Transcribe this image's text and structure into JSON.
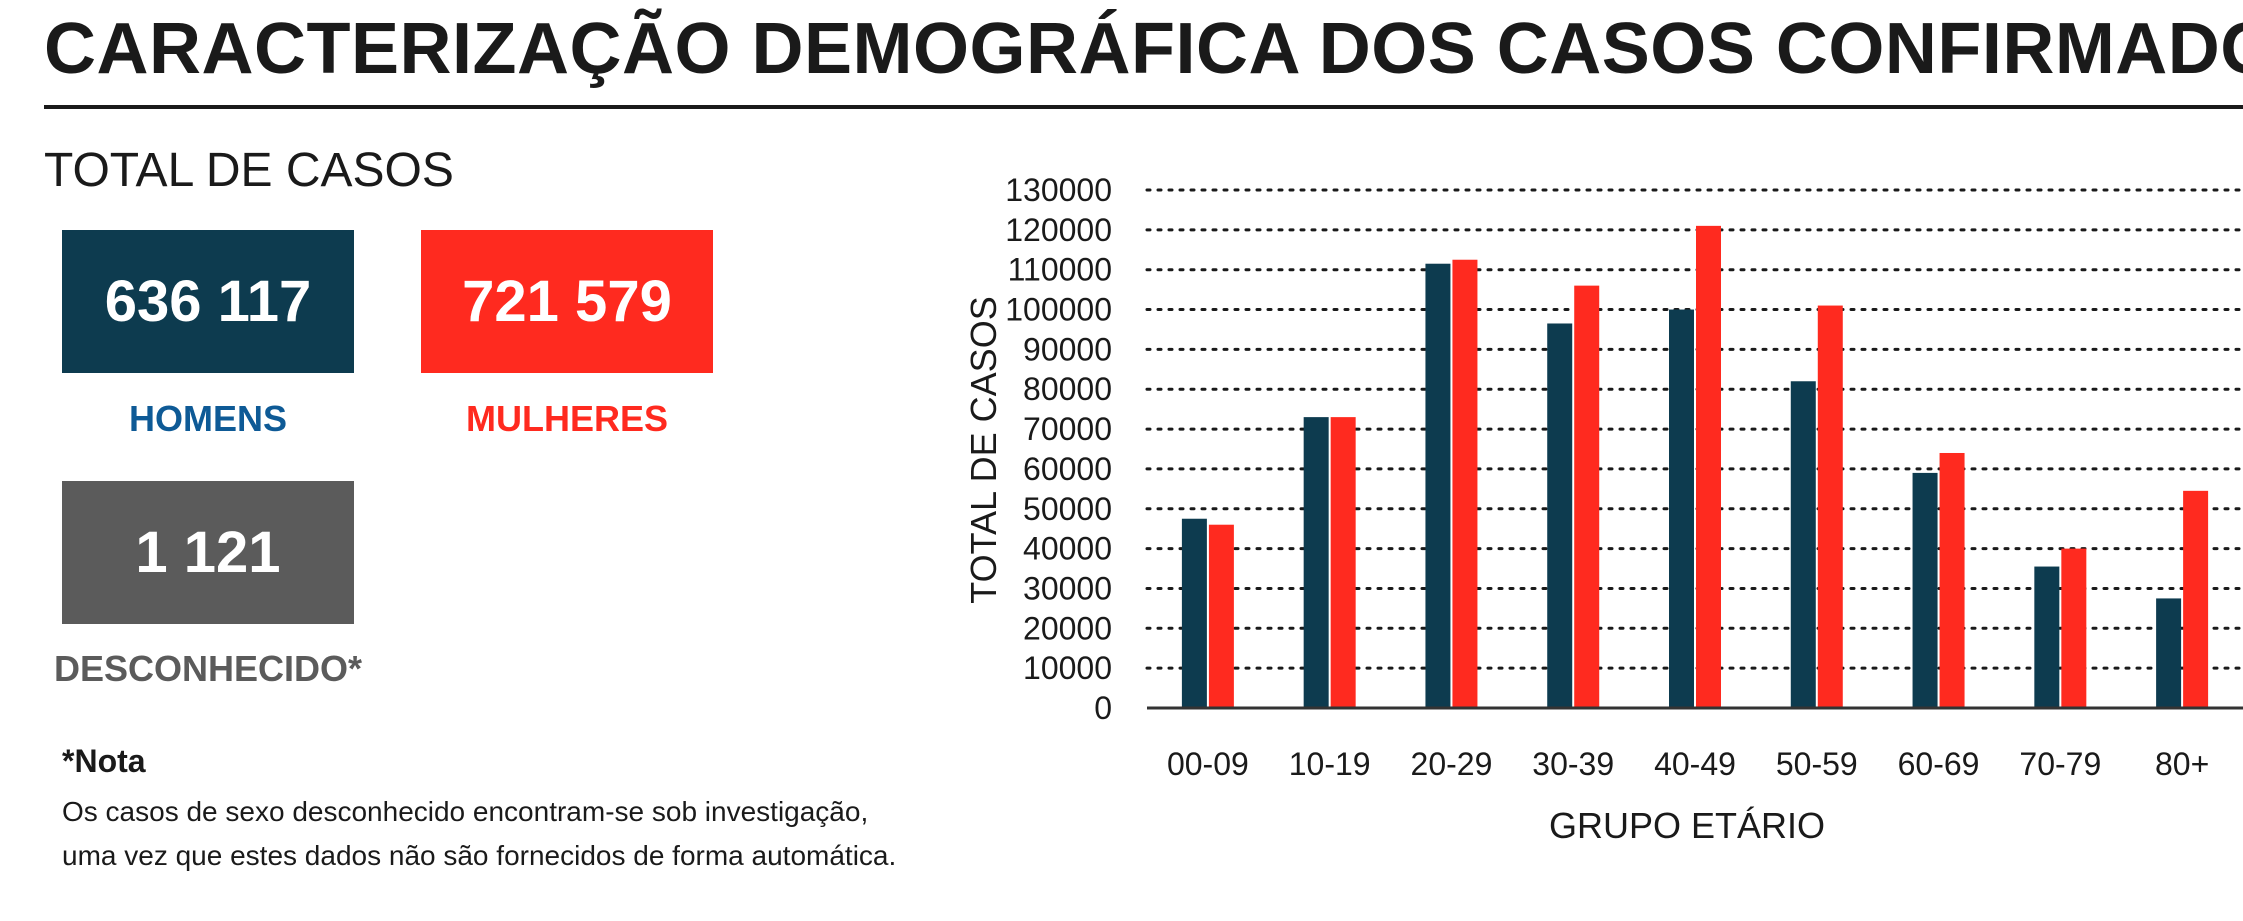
{
  "title": "CARACTERIZAÇÃO DEMOGRÁFICA DOS CASOS CONFIRMADOS",
  "totals": {
    "heading": "TOTAL DE CASOS",
    "men": {
      "value": "636 117",
      "label": "HOMENS",
      "box_color": "#0d3b4f",
      "label_color": "#0e5a96"
    },
    "women": {
      "value": "721 579",
      "label": "MULHERES",
      "box_color": "#ff2a1f",
      "label_color": "#ff2a1f"
    },
    "unknown": {
      "value": "1 121",
      "label": "DESCONHECIDO*",
      "box_color": "#5b5b5b",
      "label_color": "#5b5b5b"
    }
  },
  "note": {
    "title": "*Nota",
    "lines": [
      "Os casos de sexo desconhecido encontram-se sob investigação,",
      "uma vez que estes dados não são fornecidos de forma automática."
    ]
  },
  "chart_data": {
    "type": "bar",
    "xlabel": "GRUPO ETÁRIO",
    "ylabel": "TOTAL DE CASOS",
    "categories": [
      "00-09",
      "10-19",
      "20-29",
      "30-39",
      "40-49",
      "50-59",
      "60-69",
      "70-79",
      "80+"
    ],
    "series": [
      {
        "color": "#0d3b4f",
        "values": [
          47500,
          73000,
          111500,
          96500,
          100000,
          82000,
          59000,
          35500,
          27500
        ]
      },
      {
        "color": "#ff2a1f",
        "values": [
          46000,
          73000,
          112500,
          106000,
          121000,
          101000,
          64000,
          40000,
          54500
        ]
      }
    ],
    "ylim": [
      0,
      130000
    ],
    "yticks": [
      0,
      10000,
      20000,
      30000,
      40000,
      50000,
      60000,
      70000,
      80000,
      90000,
      100000,
      110000,
      120000,
      130000
    ],
    "grid": true,
    "grid_style": "dotted",
    "legend": "none"
  }
}
